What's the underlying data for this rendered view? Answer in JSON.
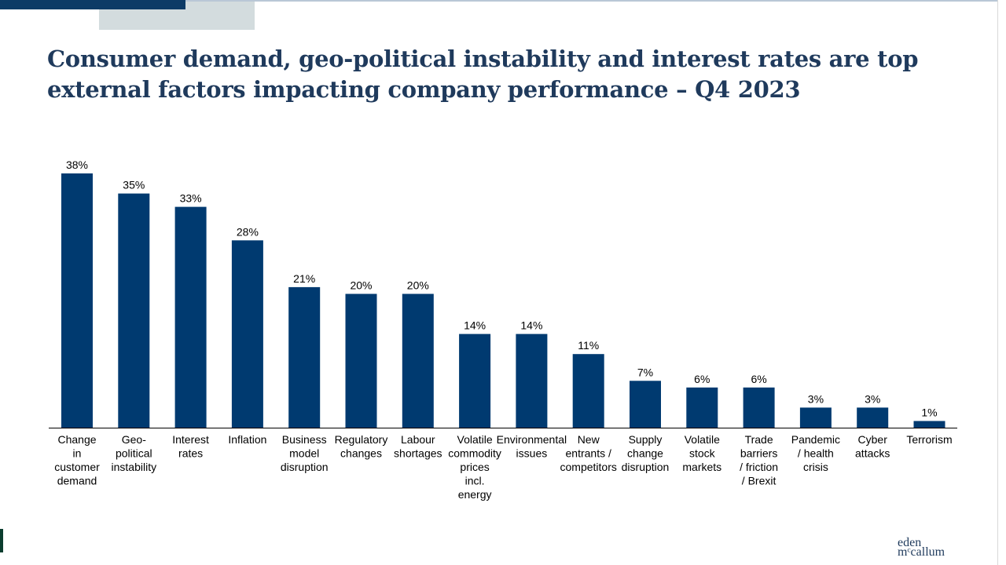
{
  "slide": {
    "title": "Consumer demand, geo-political instability and interest rates are top external factors impacting company performance – Q4 2023",
    "logo_line1": "eden",
    "logo_line2": "mᶜcallum"
  },
  "colors": {
    "bar": "#003a70",
    "title": "#1f3a5c",
    "accent_dark": "#0d3b66",
    "accent_light": "#d3dcde",
    "left_mark": "#0b3d2e",
    "axis": "#000000"
  },
  "chart_data": {
    "type": "bar",
    "categories": [
      "Change in customer demand",
      "Geo- political instability",
      "Interest rates",
      "Inflation",
      "Business model disruption",
      "Regulatory changes",
      "Labour shortages",
      "Volatile commodity prices incl. energy",
      "Environmental issues",
      "New entrants / competitors",
      "Supply change disruption",
      "Volatile stock markets",
      "Trade barriers / friction / Brexit",
      "Pandemic / health crisis",
      "Cyber attacks",
      "Terrorism"
    ],
    "category_lines": [
      [
        "Change",
        "in",
        "customer",
        "demand"
      ],
      [
        "Geo-",
        "political",
        "instability"
      ],
      [
        "Interest",
        "rates"
      ],
      [
        "Inflation"
      ],
      [
        "Business",
        "model",
        "disruption"
      ],
      [
        "Regulatory",
        "changes"
      ],
      [
        "Labour",
        "shortages"
      ],
      [
        "Volatile",
        "commodity",
        "prices",
        "incl.",
        "energy"
      ],
      [
        "Environmental",
        "issues"
      ],
      [
        "New",
        "entrants /",
        "competitors"
      ],
      [
        "Supply",
        "change",
        "disruption"
      ],
      [
        "Volatile",
        "stock",
        "markets"
      ],
      [
        "Trade",
        "barriers",
        "/ friction",
        "/ Brexit"
      ],
      [
        "Pandemic",
        "/ health",
        "crisis"
      ],
      [
        "Cyber",
        "attacks"
      ],
      [
        "Terrorism"
      ]
    ],
    "values": [
      38,
      35,
      33,
      28,
      21,
      20,
      20,
      14,
      14,
      11,
      7,
      6,
      6,
      3,
      3,
      1
    ],
    "data_labels": [
      "38%",
      "35%",
      "33%",
      "28%",
      "21%",
      "20%",
      "20%",
      "14%",
      "14%",
      "11%",
      "7%",
      "6%",
      "6%",
      "3%",
      "3%",
      "1%"
    ],
    "title": "",
    "xlabel": "",
    "ylabel": "",
    "ylim": [
      0,
      40
    ],
    "grid": false,
    "legend": "none"
  }
}
